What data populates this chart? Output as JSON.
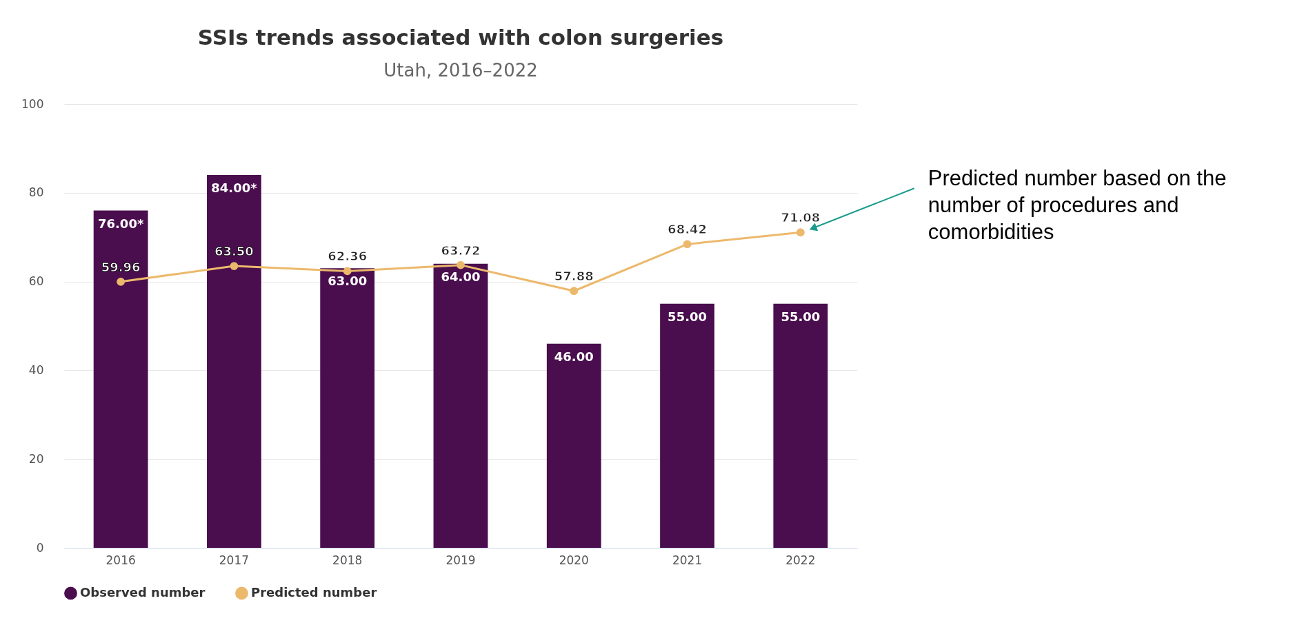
{
  "chart_data": {
    "type": "bar",
    "title": "SSIs trends associated with colon surgeries",
    "subtitle": "Utah, 2016–2022",
    "categories": [
      "2016",
      "2017",
      "2018",
      "2019",
      "2020",
      "2021",
      "2022"
    ],
    "series": [
      {
        "name": "Observed number",
        "color": "#4a0e4e",
        "values": [
          76,
          84,
          63,
          64,
          46,
          55,
          55
        ],
        "value_labels": [
          "76.00*",
          "84.00*",
          "63.00",
          "64.00",
          "46.00",
          "55.00",
          "55.00"
        ]
      },
      {
        "name": "Predicted number",
        "type": "line",
        "color": "#ecb96c",
        "marker": "circle",
        "values": [
          59.96,
          63.5,
          62.36,
          63.72,
          57.88,
          68.42,
          71.08
        ],
        "value_labels": [
          "59.96",
          "63.50",
          "62.36",
          "63.72",
          "57.88",
          "68.42",
          "71.08"
        ]
      }
    ],
    "ylim": [
      0,
      100
    ],
    "yticks": [
      0,
      20,
      40,
      60,
      80,
      100
    ],
    "grid": "y",
    "legend": "bottom",
    "annotations": [
      "Predicted number based on the number of procedures and comorbidities"
    ]
  }
}
